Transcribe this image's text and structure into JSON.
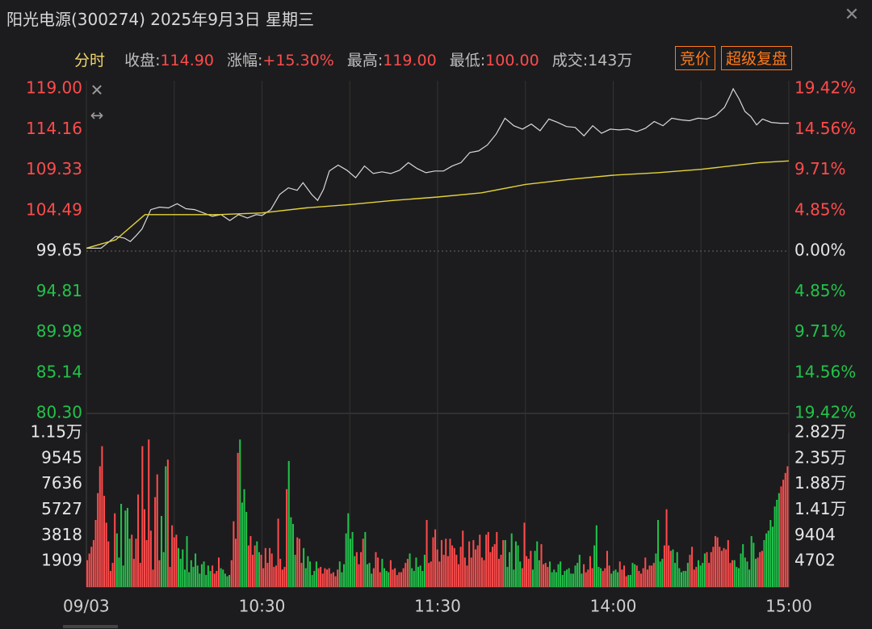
{
  "title": "阳光电源(300274) 2025年9月3日 星期三",
  "info": {
    "tab": "分时",
    "close_label": "收盘:",
    "close_value": "114.90",
    "change_label": "涨幅:",
    "change_value": "+15.30%",
    "high_label": "最高:",
    "high_value": "119.00",
    "low_label": "最低:",
    "low_value": "100.00",
    "volume_label": "成交:",
    "volume_value": "143万"
  },
  "buttons": {
    "auction": "竞价",
    "super_review": "超级复盘"
  },
  "colors": {
    "up": "#ff4b4b",
    "down": "#22c24a",
    "price_line": "#d8d8d8",
    "avg_line": "#e3d23a",
    "grid": "#333333"
  },
  "chart_data": [
    {
      "type": "line",
      "name_visible": false,
      "prev_close": 99.65,
      "ylim": [
        80.3,
        119.0
      ],
      "left_ticks": [
        "119.00",
        "114.16",
        "109.33",
        "104.49",
        "99.65",
        "94.81",
        "89.98",
        "85.14",
        "80.30"
      ],
      "right_ticks": [
        "19.42%",
        "14.56%",
        "9.71%",
        "4.85%",
        "0.00%",
        "4.85%",
        "9.71%",
        "14.56%",
        "19.42%"
      ],
      "x_ticks": [
        "09/03",
        "10:30",
        "11:30",
        "14:00",
        "15:00"
      ],
      "x_tick_minutes": [
        0,
        60,
        120,
        180,
        240
      ],
      "series": [
        {
          "role": "price",
          "points": [
            [
              0,
              100.0
            ],
            [
              5,
              100.0
            ],
            [
              10,
              101.4
            ],
            [
              13,
              101.2
            ],
            [
              15,
              100.8
            ],
            [
              17,
              101.5
            ],
            [
              19,
              102.3
            ],
            [
              22,
              104.6
            ],
            [
              25,
              104.9
            ],
            [
              28,
              104.8
            ],
            [
              31,
              105.3
            ],
            [
              34,
              104.7
            ],
            [
              37,
              104.6
            ],
            [
              40,
              104.2
            ],
            [
              43,
              103.8
            ],
            [
              46,
              104.0
            ],
            [
              49,
              103.3
            ],
            [
              52,
              104.0
            ],
            [
              55,
              103.6
            ],
            [
              58,
              104.0
            ],
            [
              60,
              103.9
            ],
            [
              63,
              104.6
            ],
            [
              66,
              106.4
            ],
            [
              69,
              107.2
            ],
            [
              72,
              106.9
            ],
            [
              74,
              107.8
            ],
            [
              77,
              106.4
            ],
            [
              79,
              105.7
            ],
            [
              81,
              107.0
            ],
            [
              83,
              109.2
            ],
            [
              86,
              109.9
            ],
            [
              89,
              109.3
            ],
            [
              92,
              108.4
            ],
            [
              95,
              109.8
            ],
            [
              98,
              108.9
            ],
            [
              101,
              109.1
            ],
            [
              104,
              108.9
            ],
            [
              107,
              109.3
            ],
            [
              110,
              110.2
            ],
            [
              113,
              109.5
            ],
            [
              116,
              109.0
            ],
            [
              119,
              109.2
            ],
            [
              122,
              109.2
            ],
            [
              125,
              109.8
            ],
            [
              128,
              110.2
            ],
            [
              131,
              111.4
            ],
            [
              134,
              111.6
            ],
            [
              137,
              112.3
            ],
            [
              140,
              113.6
            ],
            [
              143,
              115.5
            ],
            [
              146,
              114.6
            ],
            [
              149,
              114.2
            ],
            [
              152,
              114.8
            ],
            [
              155,
              114.0
            ],
            [
              158,
              115.4
            ],
            [
              161,
              115.0
            ],
            [
              164,
              114.5
            ],
            [
              167,
              114.4
            ],
            [
              170,
              113.4
            ],
            [
              173,
              114.6
            ],
            [
              176,
              113.7
            ],
            [
              179,
              114.2
            ],
            [
              182,
              114.1
            ],
            [
              185,
              114.2
            ],
            [
              188,
              113.9
            ],
            [
              191,
              114.3
            ],
            [
              194,
              115.1
            ],
            [
              197,
              114.6
            ],
            [
              200,
              115.5
            ],
            [
              203,
              115.3
            ],
            [
              206,
              115.2
            ],
            [
              209,
              115.5
            ],
            [
              212,
              115.4
            ],
            [
              215,
              115.8
            ],
            [
              218,
              116.8
            ],
            [
              220,
              118.2
            ],
            [
              221,
              119.0
            ],
            [
              223,
              117.8
            ],
            [
              225,
              116.3
            ],
            [
              227,
              115.7
            ],
            [
              229,
              114.7
            ],
            [
              231,
              115.4
            ],
            [
              234,
              115.0
            ],
            [
              237,
              114.9
            ],
            [
              240,
              114.9
            ]
          ]
        },
        {
          "role": "average",
          "points": [
            [
              0,
              100.0
            ],
            [
              10,
              101.0
            ],
            [
              20,
              104.0
            ],
            [
              30,
              104.0
            ],
            [
              45,
              104.0
            ],
            [
              60,
              104.2
            ],
            [
              75,
              104.8
            ],
            [
              90,
              105.2
            ],
            [
              105,
              105.7
            ],
            [
              120,
              106.1
            ],
            [
              135,
              106.6
            ],
            [
              150,
              107.6
            ],
            [
              165,
              108.2
            ],
            [
              180,
              108.7
            ],
            [
              195,
              109.0
            ],
            [
              210,
              109.4
            ],
            [
              220,
              109.8
            ],
            [
              230,
              110.2
            ],
            [
              240,
              110.4
            ]
          ]
        }
      ]
    },
    {
      "type": "bar",
      "name_visible": false,
      "ylim": [
        0,
        11500
      ],
      "left_ticks": [
        "1.15万",
        "9545",
        "7636",
        "5727",
        "3818",
        "1909"
      ],
      "right_ticks": [
        "2.82万",
        "2.35万",
        "1.88万",
        "1.41万",
        "9404",
        "4702"
      ],
      "note_values": "per-minute volume, colored by up/down",
      "values": [
        2000,
        2500,
        3000,
        3500,
        5000,
        7000,
        9000,
        10500,
        6800,
        4800,
        3400,
        1200,
        1800,
        5500,
        4000,
        2200,
        6200,
        1600,
        5700,
        5900,
        3600,
        3900,
        2100,
        3600,
        6900,
        1800,
        10500,
        5800,
        3500,
        11000,
        4200,
        1300,
        6700,
        8400,
        2000,
        5300,
        2600,
        9000,
        9500,
        1500,
        4600,
        3700,
        3900,
        2900,
        2100,
        2800,
        1300,
        3800,
        1100,
        2000,
        1500,
        2500,
        1600,
        1000,
        1700,
        1900,
        900,
        1600,
        1200,
        1600,
        1000,
        1200,
        2200,
        1400,
        1300,
        1000,
        800,
        900,
        2000,
        4900,
        3600,
        10000,
        11000,
        6300,
        7300,
        5600,
        3100,
        3800,
        2400,
        3100,
        3400,
        2600,
        2400,
        1400,
        2900,
        1800,
        2900,
        2500,
        1500,
        1600,
        5100,
        2100,
        1300,
        1500,
        7300,
        9400,
        5200,
        4700,
        2400,
        3700,
        3600,
        1800,
        2900,
        1400,
        2300,
        1900,
        900,
        1200,
        1900,
        1400,
        1500,
        1000,
        1400,
        1300,
        1400,
        1000,
        1100,
        800,
        1300,
        1900,
        1100,
        1700,
        4000,
        5500,
        3600,
        4100,
        2300,
        2600,
        1700,
        2600,
        3600,
        4100,
        1700,
        1800,
        1000,
        1400,
        2600,
        2200,
        1100,
        2100,
        1400,
        1200,
        1100,
        2000,
        1300,
        1400,
        900,
        1100,
        1100,
        1400,
        1800,
        2100,
        2500,
        1400,
        1200,
        2200,
        1500,
        1600,
        1200,
        2400,
        5000,
        1800,
        1900,
        3700,
        4300,
        2800,
        1900,
        3500,
        2400,
        3600,
        2300,
        3600,
        3100,
        2900,
        2400,
        1700,
        3000,
        4200,
        2200,
        1600,
        3400,
        2200,
        3500,
        2800,
        3100,
        3900,
        2200,
        2000,
        3900,
        4100,
        2600,
        3000,
        3200,
        4100,
        2100,
        2400,
        3500,
        3500,
        1500,
        2600,
        4000,
        1300,
        3400,
        3100,
        1900,
        1400,
        4800,
        2300,
        2100,
        2700,
        1300,
        2700,
        3400,
        2000,
        3200,
        1700,
        1800,
        1500,
        1900,
        1100,
        1300,
        1100,
        1700,
        1900,
        900,
        1200,
        1300,
        1400,
        1000,
        1000,
        1600,
        1800,
        2400,
        1000,
        1700,
        1100,
        1300,
        2300,
        1400,
        3100,
        4600,
        1500,
        1400,
        1200,
        1400,
        2700,
        1600,
        1000,
        1200,
        1300,
        1100,
        1900,
        1300,
        1600,
        800,
        900,
        900,
        1800,
        1700,
        1600,
        1200,
        1000,
        1400,
        2200,
        1300,
        1600,
        1600,
        1800,
        2500,
        5000,
        1900,
        2100,
        3100,
        5800,
        3100,
        2700,
        2800,
        1800,
        2600,
        1400,
        1100,
        1200,
        1200,
        1800,
        2400,
        3000,
        1300,
        1500,
        2000,
        1600,
        1800,
        2500,
        2600,
        1800,
        2600,
        3000,
        3800,
        3700,
        3000,
        2700,
        2900,
        2800,
        3500,
        1800,
        2000,
        2000,
        1500,
        1400,
        2500,
        3200,
        2200,
        1900,
        1300,
        3800,
        3300,
        2100,
        2200,
        2600,
        2700,
        3500,
        4000,
        4200,
        5000,
        4500,
        6000,
        6500,
        7000,
        7500,
        8000,
        8500,
        9000
      ]
    }
  ]
}
